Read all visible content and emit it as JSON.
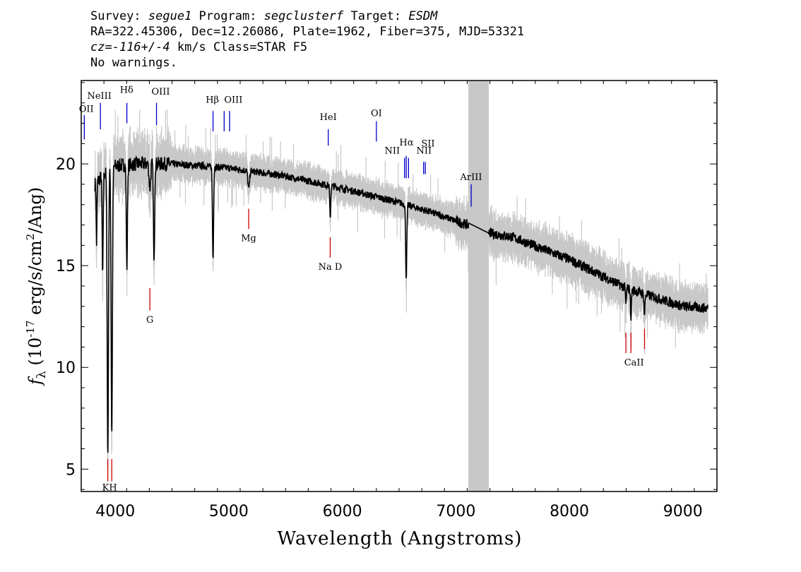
{
  "header": {
    "line1": {
      "survey_label": "Survey: ",
      "survey": "segue1",
      "program_label": " Program: ",
      "program": "segclusterf",
      "target_label": " Target: ",
      "target": "ESDM"
    },
    "line2": "RA=322.45306, Dec=12.26086, Plate=1962, Fiber=375, MJD=53321",
    "line3": {
      "cz_label": "cz=",
      "cz": "-116+/-4",
      "cz_unit": " km/s Class=STAR F5"
    },
    "line4": "No warnings."
  },
  "chart_data": {
    "type": "line",
    "title": "",
    "xlabel": "Wavelength (Angstroms)",
    "ylabel_prefix": "f",
    "ylabel_sub": "λ",
    "ylabel_mid": " (10",
    "ylabel_sup": "-17",
    "ylabel_rest": " erg/s/cm",
    "ylabel_sup2": "2",
    "ylabel_end": "/Ang)",
    "xlim": [
      3700,
      9300
    ],
    "ylim": [
      3.9,
      24.1
    ],
    "xticks": [
      4000,
      5000,
      6000,
      7000,
      8000,
      9000
    ],
    "yticks": [
      5,
      10,
      15,
      20
    ],
    "masked_region": [
      7110,
      7290
    ],
    "spectrum_continuum": [
      [
        3820,
        19.0
      ],
      [
        3900,
        19.5
      ],
      [
        4000,
        19.9
      ],
      [
        4200,
        20.0
      ],
      [
        4500,
        20.0
      ],
      [
        5000,
        19.8
      ],
      [
        5500,
        19.4
      ],
      [
        6000,
        18.8
      ],
      [
        6500,
        18.1
      ],
      [
        6800,
        17.6
      ],
      [
        7100,
        17.0
      ],
      [
        7300,
        16.6
      ],
      [
        7500,
        16.4
      ],
      [
        8000,
        15.3
      ],
      [
        8500,
        13.9
      ],
      [
        9000,
        13.0
      ],
      [
        9220,
        12.9
      ]
    ],
    "absorption_lines": [
      {
        "center": 3934,
        "depth": 14.0,
        "width": 8
      },
      {
        "center": 3969,
        "depth": 13.0,
        "width": 8
      },
      {
        "center": 3889,
        "depth": 5.0,
        "width": 6
      },
      {
        "center": 3835,
        "depth": 3.0,
        "width": 5
      },
      {
        "center": 4102,
        "depth": 5.0,
        "width": 7
      },
      {
        "center": 4341,
        "depth": 5.0,
        "width": 7
      },
      {
        "center": 4305,
        "depth": 1.2,
        "width": 10
      },
      {
        "center": 4861,
        "depth": 4.5,
        "width": 7
      },
      {
        "center": 5175,
        "depth": 0.9,
        "width": 10
      },
      {
        "center": 5893,
        "depth": 1.6,
        "width": 6
      },
      {
        "center": 6563,
        "depth": 3.6,
        "width": 7
      },
      {
        "center": 8498,
        "depth": 0.8,
        "width": 6
      },
      {
        "center": 8542,
        "depth": 1.3,
        "width": 6
      },
      {
        "center": 8662,
        "depth": 1.0,
        "width": 6
      }
    ],
    "series": [
      {
        "color": "#000000"
      },
      {
        "color": "#c8c8c8"
      }
    ],
    "emission_markers": [
      {
        "label": "OII",
        "x": 3727,
        "y0": 21.2,
        "y1": 22.4
      },
      {
        "label": "NeIII",
        "x": 3869,
        "y0": 21.7,
        "y1": 23.0
      },
      {
        "label": "Hδ",
        "x": 4102,
        "y0": 22.0,
        "y1": 23.0
      },
      {
        "label": "OIII",
        "x": 4363,
        "y0": 21.9,
        "y1": 23.0
      },
      {
        "label": "Hβ",
        "x": 4861,
        "y0": 21.6,
        "y1": 22.6
      },
      {
        "label": "OIII",
        "x": 4959,
        "y0": 21.6,
        "y1": 22.6
      },
      {
        "label": "OIII",
        "x": 5007,
        "y0": 21.6,
        "y1": 22.6
      },
      {
        "label": "HeI",
        "x": 5876,
        "y0": 20.9,
        "y1": 21.7
      },
      {
        "label": "OI",
        "x": 6300,
        "y0": 21.1,
        "y1": 22.1
      },
      {
        "label": "NII",
        "x": 6548,
        "y0": 19.3,
        "y1": 20.3
      },
      {
        "label": "Hα",
        "x": 6563,
        "y0": 19.3,
        "y1": 20.4
      },
      {
        "label": "NII",
        "x": 6583,
        "y0": 19.3,
        "y1": 20.3
      },
      {
        "label": "SII",
        "x": 6716,
        "y0": 19.5,
        "y1": 20.1
      },
      {
        "label": "SII",
        "x": 6731,
        "y0": 19.5,
        "y1": 20.1
      },
      {
        "label": "ArIII",
        "x": 7135,
        "y0": 17.9,
        "y1": 19.0
      }
    ],
    "emission_label_positions": [
      {
        "label": "OII",
        "x": 3745,
        "y": 22.55
      },
      {
        "label": "NeIII",
        "x": 3860,
        "y": 23.2
      },
      {
        "label": "Hδ",
        "x": 4100,
        "y": 23.5
      },
      {
        "label": "OIII",
        "x": 4400,
        "y": 23.4
      },
      {
        "label": "Hβ",
        "x": 4855,
        "y": 23.0
      },
      {
        "label": "OIII",
        "x": 5040,
        "y": 23.0
      },
      {
        "label": "HeI",
        "x": 5876,
        "y": 22.15
      },
      {
        "label": "OI",
        "x": 6300,
        "y": 22.35
      },
      {
        "label": "NII",
        "x": 6440,
        "y": 20.5
      },
      {
        "label": "Hα",
        "x": 6565,
        "y": 20.9
      },
      {
        "label": "NII",
        "x": 6720,
        "y": 20.5
      },
      {
        "label": "SII",
        "x": 6755,
        "y": 20.85
      },
      {
        "label": "ArIII",
        "x": 7135,
        "y": 19.2
      }
    ],
    "absorption_markers": [
      {
        "x": 3934,
        "y0": 4.4,
        "y1": 5.5
      },
      {
        "x": 3969,
        "y0": 4.4,
        "y1": 5.5
      },
      {
        "x": 4305,
        "y0": 12.8,
        "y1": 13.9
      },
      {
        "x": 5175,
        "y0": 16.8,
        "y1": 17.8
      },
      {
        "x": 5893,
        "y0": 15.4,
        "y1": 16.4
      },
      {
        "x": 8498,
        "y0": 10.7,
        "y1": 11.7
      },
      {
        "x": 8542,
        "y0": 10.7,
        "y1": 11.7
      },
      {
        "x": 8662,
        "y0": 10.9,
        "y1": 11.9
      }
    ],
    "absorption_labels": [
      {
        "label": "KH",
        "x": 3950,
        "y": 3.95
      },
      {
        "label": "G",
        "x": 4305,
        "y": 12.2
      },
      {
        "label": "Mg",
        "x": 5175,
        "y": 16.2
      },
      {
        "label": "Na D",
        "x": 5893,
        "y": 14.8
      },
      {
        "label": "CaII",
        "x": 8570,
        "y": 10.1
      }
    ],
    "colors": {
      "emission": "#0000cc",
      "absorption": "#cc0000",
      "mask": "#c8c8c8",
      "noise": "#c8c8c8",
      "flux": "#000000"
    }
  }
}
